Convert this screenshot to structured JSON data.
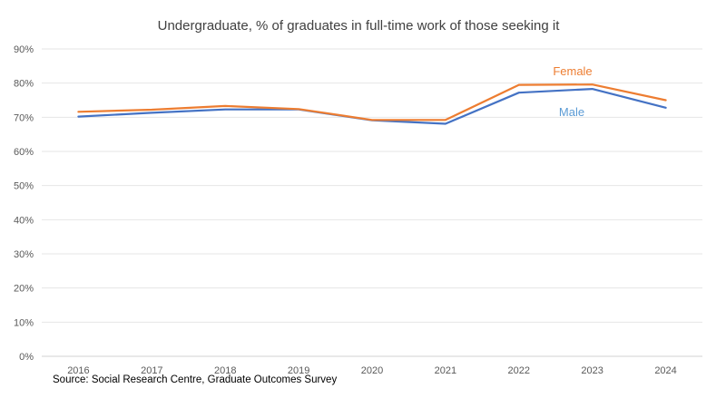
{
  "chart_data": {
    "type": "line",
    "title": "Undergraduate, % of graduates in full-time work of those seeking it",
    "source": "Source: Social Research Centre, Graduate Outcomes Survey",
    "categories": [
      "2016",
      "2017",
      "2018",
      "2019",
      "2020",
      "2021",
      "2022",
      "2023",
      "2024"
    ],
    "y_ticks": [
      "0%",
      "10%",
      "20%",
      "30%",
      "40%",
      "50%",
      "60%",
      "70%",
      "80%",
      "90%"
    ],
    "ylim": [
      0,
      90
    ],
    "grid": true,
    "legend": "inline labels",
    "series": [
      {
        "name": "Female",
        "color": "#ED7D31",
        "values": [
          71.6,
          72.2,
          73.3,
          72.4,
          69.2,
          69.2,
          79.5,
          79.6,
          75.0
        ]
      },
      {
        "name": "Male",
        "color": "#4472C4",
        "label_color": "#5B9BD5",
        "values": [
          70.2,
          71.3,
          72.3,
          72.3,
          69.1,
          68.1,
          77.2,
          78.3,
          72.8
        ]
      }
    ]
  }
}
